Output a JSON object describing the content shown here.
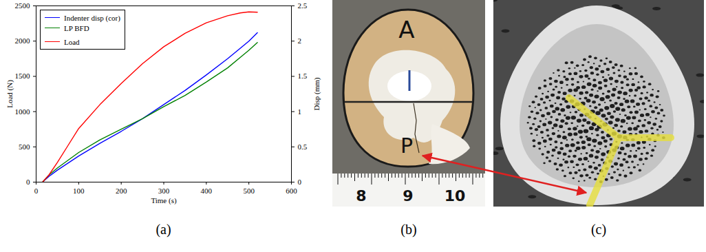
{
  "chart_data": {
    "type": "line",
    "x_label": "Time (s)",
    "y_label": "Load (N)",
    "y2_label": "Disp (mm)",
    "x": [
      15,
      30,
      50,
      75,
      100,
      150,
      200,
      250,
      300,
      350,
      400,
      450,
      480,
      500,
      520
    ],
    "xlim": [
      0,
      600
    ],
    "xticks": [
      0,
      100,
      200,
      300,
      400,
      500,
      600
    ],
    "ylim": [
      0,
      2500
    ],
    "yticks": [
      0,
      500,
      1000,
      1500,
      2000,
      2500
    ],
    "y2lim": [
      0,
      2.5
    ],
    "y2ticks": [
      0,
      0.5,
      1,
      1.5,
      2,
      2.5
    ],
    "legend": "top-left",
    "series": [
      {
        "name": "Indenter disp (cor)",
        "color": "#0000ff",
        "axis": "y2",
        "values": [
          0,
          0.08,
          0.17,
          0.27,
          0.37,
          0.55,
          0.72,
          0.9,
          1.1,
          1.3,
          1.52,
          1.75,
          1.9,
          2.0,
          2.12
        ]
      },
      {
        "name": "LP BFD",
        "color": "#008000",
        "axis": "y2",
        "values": [
          0,
          0.1,
          0.2,
          0.31,
          0.42,
          0.6,
          0.75,
          0.9,
          1.07,
          1.23,
          1.42,
          1.62,
          1.77,
          1.87,
          1.98
        ]
      },
      {
        "name": "Load",
        "color": "#ff0000",
        "axis": "y",
        "values": [
          0,
          100,
          280,
          520,
          760,
          1100,
          1400,
          1680,
          1920,
          2110,
          2260,
          2360,
          2400,
          2415,
          2410
        ]
      }
    ]
  },
  "figure": {
    "panels": [
      {
        "label": "(a)"
      },
      {
        "label": "(b)",
        "markings": [
          "A",
          "P"
        ],
        "ruler_labels": [
          "8",
          "9",
          "10"
        ]
      },
      {
        "label": "(c)"
      }
    ]
  }
}
